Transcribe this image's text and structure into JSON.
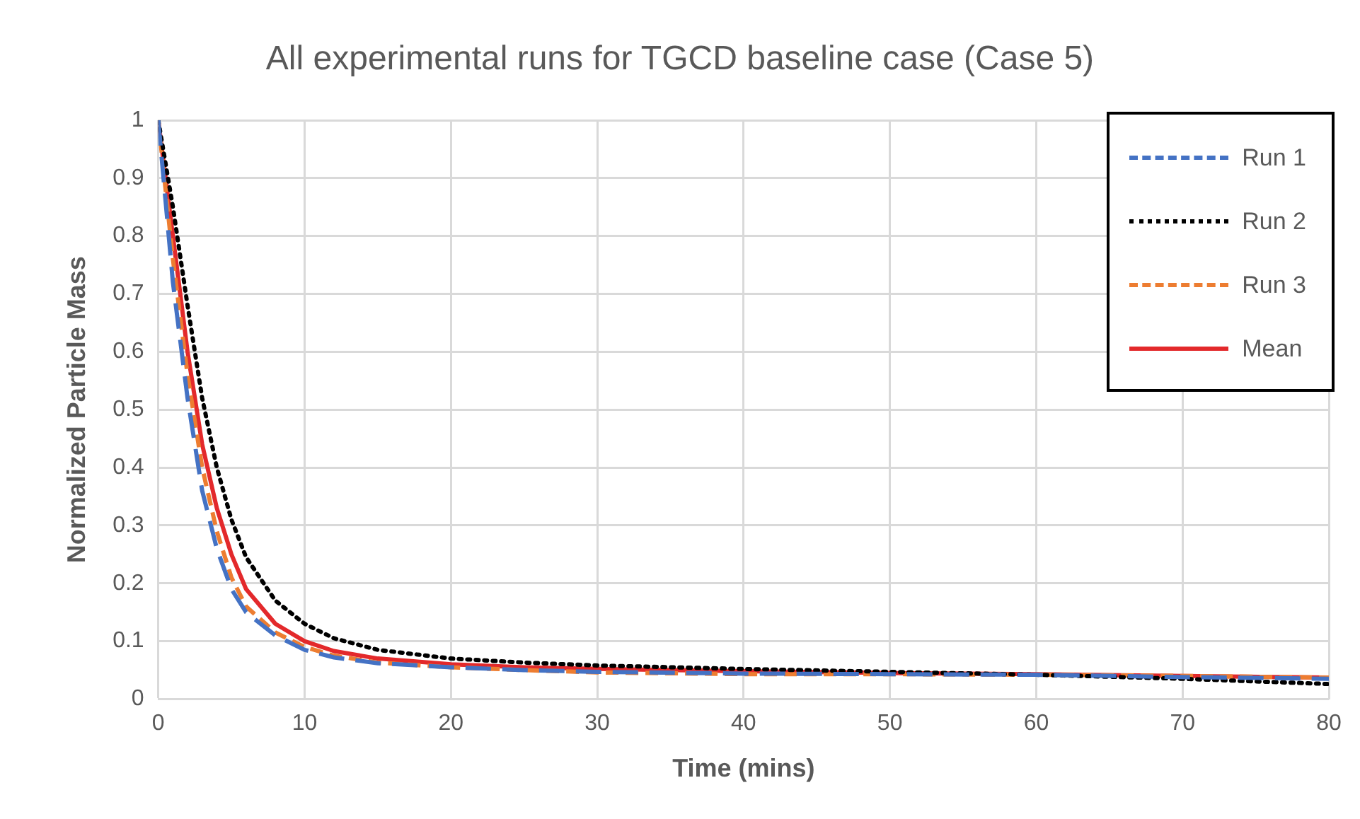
{
  "chart_data": {
    "type": "line",
    "title": "All experimental runs for TGCD baseline case (Case 5)",
    "xlabel": "Time (mins)",
    "ylabel": "Normalized Particle Mass",
    "x": [
      0,
      1,
      2,
      3,
      4,
      5,
      6,
      8,
      10,
      12,
      15,
      20,
      25,
      30,
      40,
      50,
      60,
      70,
      80
    ],
    "series": [
      {
        "name": "Run 1",
        "color": "#4472c4",
        "line_style": "dashed",
        "values": [
          1,
          0.72,
          0.52,
          0.36,
          0.26,
          0.19,
          0.15,
          0.11,
          0.085,
          0.072,
          0.062,
          0.055,
          0.05,
          0.047,
          0.044,
          0.043,
          0.042,
          0.038,
          0.035
        ]
      },
      {
        "name": "Run 2",
        "color": "#000000",
        "line_style": "dotted",
        "values": [
          1,
          0.85,
          0.68,
          0.52,
          0.4,
          0.31,
          0.245,
          0.17,
          0.13,
          0.105,
          0.085,
          0.07,
          0.063,
          0.058,
          0.052,
          0.047,
          0.042,
          0.035,
          0.026
        ]
      },
      {
        "name": "Run 3",
        "color": "#ed7d31",
        "line_style": "dashed",
        "values": [
          1,
          0.76,
          0.56,
          0.4,
          0.29,
          0.21,
          0.16,
          0.115,
          0.09,
          0.075,
          0.063,
          0.055,
          0.05,
          0.046,
          0.043,
          0.043,
          0.042,
          0.04,
          0.037
        ]
      },
      {
        "name": "Mean",
        "color": "#e3292b",
        "line_style": "solid",
        "values": [
          1,
          0.8,
          0.6,
          0.44,
          0.33,
          0.25,
          0.19,
          0.13,
          0.1,
          0.083,
          0.07,
          0.06,
          0.055,
          0.052,
          0.048,
          0.045,
          0.043,
          0.04,
          0.037
        ]
      }
    ],
    "xlim": [
      0,
      80
    ],
    "xticks": [
      0,
      10,
      20,
      30,
      40,
      50,
      60,
      70,
      80
    ],
    "ylim": [
      0,
      1
    ],
    "yticks": [
      0,
      0.1,
      0.2,
      0.3,
      0.4,
      0.5,
      0.6,
      0.7,
      0.8,
      0.9,
      1
    ],
    "grid": true,
    "legend": "top right",
    "marker": "none"
  }
}
